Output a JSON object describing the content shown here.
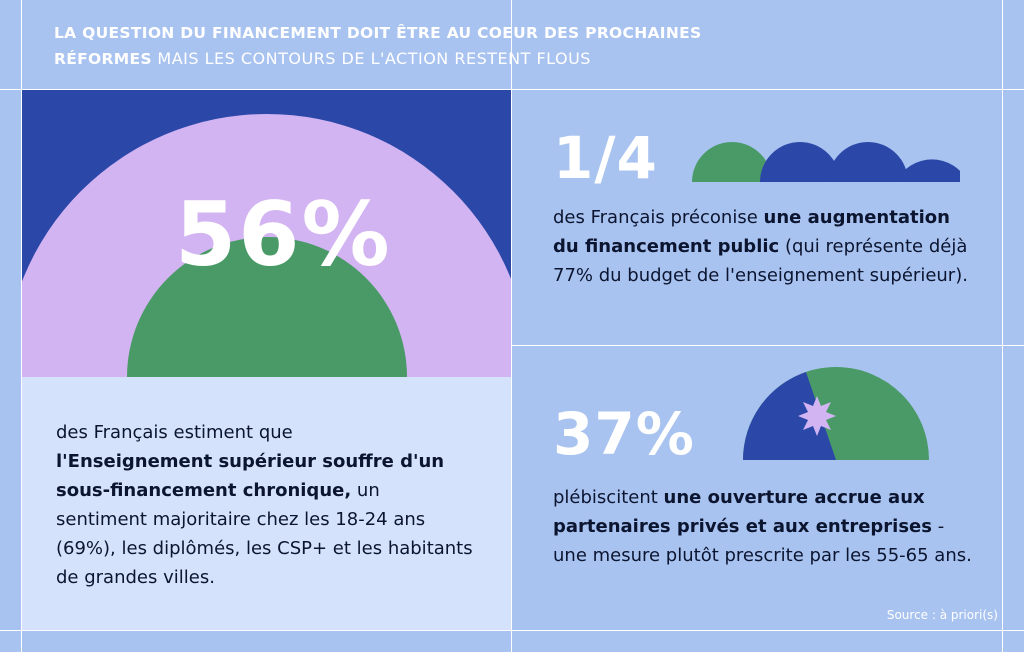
{
  "header": {
    "line1_bold": "LA QUESTION DU FINANCEMENT DOIT ÊTRE AU COEUR DES PROCHAINES",
    "line2_bold": "RÉFORMES",
    "line2_light": " MAIS LES CONTOURS DE L'ACTION RESTENT FLOUS"
  },
  "panel_left": {
    "value": "56%",
    "text_1": "des Français estiment que",
    "text_bold": "l'Enseignement supérieur souffre d'un sous-financement chronique,",
    "text_2": " un sentiment majoritaire chez les 18-24 ans (69%), les diplômés, les CSP+ et les habitants de grandes villes."
  },
  "panel_top_right": {
    "value": "1/4",
    "text_1": "des Français préconise ",
    "text_bold": "une augmentation du financement public",
    "text_2": " (qui représente déjà 77% du budget de l'enseignement supérieur)."
  },
  "panel_bottom_right": {
    "value": "37%",
    "text_1": "plébiscitent ",
    "text_bold": "une ouverture accrue aux partenaires privés et aux entreprises",
    "text_2": " - une mesure plutôt prescrite par les 55-65 ans."
  },
  "source": "Source : à priori(s)",
  "colors": {
    "background": "#a9c3f0",
    "navy": "#2b47a8",
    "green": "#4a9a68",
    "lavender": "#d3b4f2",
    "light_panel": "#d4e2fb"
  }
}
